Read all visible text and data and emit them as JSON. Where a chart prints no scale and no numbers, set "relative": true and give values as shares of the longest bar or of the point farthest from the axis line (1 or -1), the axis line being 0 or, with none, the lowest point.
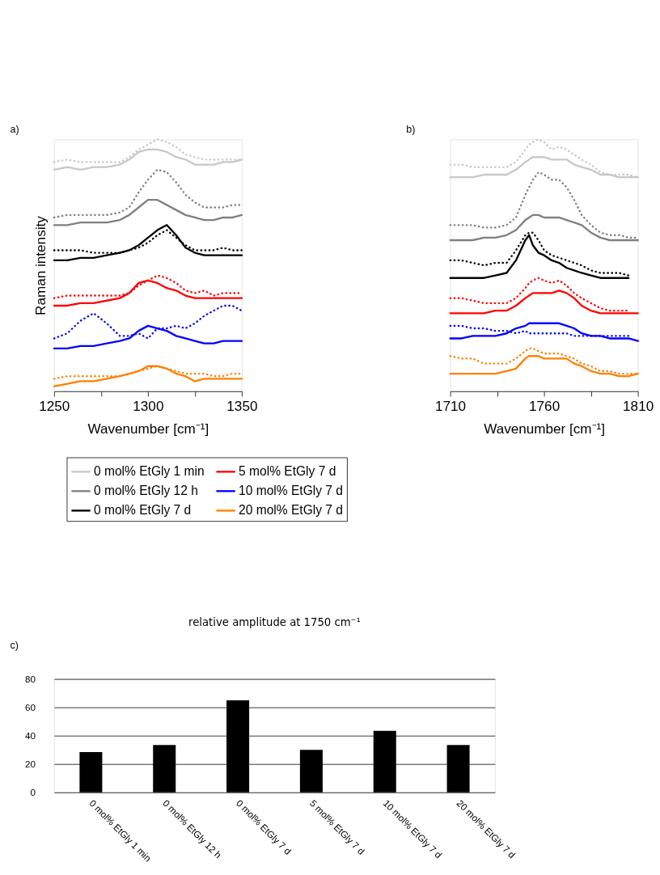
{
  "chart_data": [
    {
      "type": "line",
      "relative": true,
      "annotations": [
        "a)"
      ],
      "xlabel": "Wavenumber [cm⁻¹]",
      "ylabel": "Raman intensity",
      "legend": "bottom",
      "grid": false,
      "xlim": [
        1250,
        1350
      ],
      "xticks": [
        1250,
        {
          "value": 1275,
          "label": null
        },
        1300,
        {
          "value": 1325,
          "label": null
        },
        1350
      ],
      "x": [
        1250,
        1257,
        1264,
        1271,
        1278,
        1285,
        1290,
        1295,
        1300,
        1305,
        1310,
        1315,
        1320,
        1325,
        1330,
        1335,
        1340,
        1345,
        1350
      ],
      "series": [
        {
          "name": "0 mol% EtGly 1 min",
          "color": "#c8c8c8",
          "line_style": "solid",
          "values": [
            0.88,
            0.89,
            0.88,
            0.89,
            0.89,
            0.9,
            0.92,
            0.95,
            0.96,
            0.96,
            0.95,
            0.93,
            0.92,
            0.9,
            0.9,
            0.9,
            0.91,
            0.91,
            0.92
          ]
        },
        {
          "color": "#c8c8c8",
          "line_style": "dotted",
          "values": [
            0.91,
            0.92,
            0.91,
            0.91,
            0.91,
            0.91,
            0.93,
            0.96,
            0.98,
            1.0,
            0.99,
            0.97,
            0.94,
            0.93,
            0.92,
            0.92,
            0.92,
            0.92,
            0.92
          ]
        },
        {
          "name": "0 mol% EtGly 12 h",
          "color": "#808080",
          "line_style": "solid",
          "values": [
            0.66,
            0.66,
            0.67,
            0.67,
            0.67,
            0.68,
            0.7,
            0.73,
            0.76,
            0.76,
            0.74,
            0.72,
            0.7,
            0.69,
            0.68,
            0.68,
            0.69,
            0.69,
            0.7
          ]
        },
        {
          "color": "#808080",
          "line_style": "dotted",
          "values": [
            0.69,
            0.7,
            0.7,
            0.7,
            0.7,
            0.71,
            0.73,
            0.79,
            0.84,
            0.88,
            0.87,
            0.83,
            0.78,
            0.75,
            0.73,
            0.73,
            0.73,
            0.74,
            0.74
          ]
        },
        {
          "name": "0 mol% EtGly 7 d",
          "color": "#000000",
          "line_style": "solid",
          "values": [
            0.52,
            0.52,
            0.53,
            0.53,
            0.54,
            0.55,
            0.56,
            0.58,
            0.61,
            0.64,
            0.66,
            0.62,
            0.57,
            0.55,
            0.54,
            0.54,
            0.54,
            0.54,
            0.54
          ]
        },
        {
          "color": "#000000",
          "line_style": "dotted",
          "values": [
            0.56,
            0.56,
            0.56,
            0.55,
            0.55,
            0.55,
            0.56,
            0.57,
            0.59,
            0.62,
            0.64,
            0.61,
            0.58,
            0.56,
            0.56,
            0.56,
            0.57,
            0.56,
            0.56
          ]
        },
        {
          "name": "5 mol% EtGly 7 d",
          "color": "#ff0000",
          "line_style": "solid",
          "values": [
            0.34,
            0.34,
            0.35,
            0.35,
            0.36,
            0.37,
            0.39,
            0.43,
            0.44,
            0.43,
            0.41,
            0.4,
            0.38,
            0.37,
            0.37,
            0.37,
            0.37,
            0.37,
            0.37
          ]
        },
        {
          "color": "#ff0000",
          "line_style": "dotted",
          "values": [
            0.37,
            0.38,
            0.38,
            0.38,
            0.38,
            0.38,
            0.39,
            0.42,
            0.44,
            0.46,
            0.45,
            0.43,
            0.4,
            0.39,
            0.4,
            0.38,
            0.39,
            0.39,
            0.39
          ]
        },
        {
          "name": "10 mol% EtGly 7 d",
          "color": "#0000ff",
          "line_style": "solid",
          "values": [
            0.17,
            0.17,
            0.18,
            0.18,
            0.19,
            0.2,
            0.21,
            0.24,
            0.26,
            0.25,
            0.24,
            0.22,
            0.21,
            0.2,
            0.19,
            0.19,
            0.2,
            0.2,
            0.2
          ]
        },
        {
          "color": "#0000ff",
          "line_style": "dotted",
          "values": [
            0.21,
            0.23,
            0.28,
            0.31,
            0.27,
            0.22,
            0.22,
            0.23,
            0.21,
            0.25,
            0.25,
            0.26,
            0.25,
            0.27,
            0.3,
            0.32,
            0.34,
            0.34,
            0.32
          ]
        },
        {
          "name": "20 mol% EtGly 7 d",
          "color": "#ff8000",
          "line_style": "solid",
          "values": [
            0.02,
            0.03,
            0.04,
            0.04,
            0.05,
            0.06,
            0.07,
            0.08,
            0.1,
            0.1,
            0.09,
            0.07,
            0.06,
            0.04,
            0.05,
            0.05,
            0.05,
            0.05,
            0.05
          ]
        },
        {
          "color": "#ff8000",
          "line_style": "dotted",
          "values": [
            0.05,
            0.06,
            0.06,
            0.06,
            0.06,
            0.06,
            0.07,
            0.08,
            0.09,
            0.1,
            0.09,
            0.08,
            0.07,
            0.07,
            0.07,
            0.06,
            0.06,
            0.07,
            0.07
          ]
        }
      ]
    },
    {
      "type": "line",
      "relative": true,
      "annotations": [
        "b)"
      ],
      "xlabel": "Wavenumber [cm⁻¹]",
      "grid": false,
      "xlim": [
        1710,
        1810
      ],
      "xticks": [
        1710,
        {
          "value": 1735,
          "label": null
        },
        1760,
        {
          "value": 1785,
          "label": null
        },
        1810
      ],
      "x": [
        1710,
        1716,
        1722,
        1728,
        1734,
        1740,
        1745,
        1750,
        1752,
        1754,
        1757,
        1760,
        1764,
        1768,
        1772,
        1776,
        1780,
        1785,
        1790,
        1795,
        1800,
        1805,
        1810
      ],
      "series": [
        {
          "color": "#c8c8c8",
          "line_style": "solid",
          "values": [
            0.85,
            0.85,
            0.85,
            0.86,
            0.86,
            0.86,
            0.88,
            0.91,
            0.92,
            0.93,
            0.93,
            0.93,
            0.92,
            0.92,
            0.92,
            0.9,
            0.89,
            0.88,
            0.86,
            0.86,
            0.85,
            0.85,
            0.85
          ]
        },
        {
          "color": "#c8c8c8",
          "line_style": "dotted",
          "values": [
            0.9,
            0.9,
            0.89,
            0.89,
            0.89,
            0.89,
            0.91,
            0.96,
            0.98,
            0.99,
            1.0,
            0.99,
            0.96,
            0.97,
            0.96,
            0.94,
            0.92,
            0.9,
            0.87,
            0.86,
            0.86,
            0.86,
            0.85
          ]
        },
        {
          "color": "#808080",
          "line_style": "solid",
          "values": [
            0.6,
            0.6,
            0.6,
            0.61,
            0.61,
            0.62,
            0.64,
            0.68,
            0.69,
            0.7,
            0.7,
            0.69,
            0.69,
            0.69,
            0.68,
            0.67,
            0.66,
            0.63,
            0.61,
            0.6,
            0.6,
            0.6,
            0.6
          ]
        },
        {
          "color": "#808080",
          "line_style": "dotted",
          "values": [
            0.66,
            0.66,
            0.66,
            0.65,
            0.65,
            0.66,
            0.69,
            0.78,
            0.81,
            0.84,
            0.87,
            0.86,
            0.84,
            0.84,
            0.81,
            0.76,
            0.7,
            0.66,
            0.63,
            0.62,
            0.62,
            0.61,
            0.61
          ]
        },
        {
          "color": "#000000",
          "line_style": "solid",
          "values": [
            0.45,
            0.45,
            0.45,
            0.45,
            0.46,
            0.47,
            0.52,
            0.6,
            0.62,
            0.58,
            0.55,
            0.54,
            0.52,
            0.51,
            0.49,
            0.48,
            0.47,
            0.46,
            0.45,
            0.45,
            0.45,
            0.45,
            null
          ]
        },
        {
          "color": "#000000",
          "line_style": "dotted",
          "values": [
            0.52,
            0.52,
            0.51,
            0.5,
            0.51,
            0.51,
            0.56,
            0.62,
            0.63,
            0.63,
            0.6,
            0.56,
            0.54,
            0.53,
            0.52,
            0.51,
            0.5,
            0.48,
            0.47,
            0.47,
            0.47,
            0.46,
            null
          ]
        },
        {
          "color": "#ff0000",
          "line_style": "solid",
          "values": [
            0.31,
            0.31,
            0.31,
            0.31,
            0.32,
            0.32,
            0.34,
            0.37,
            0.38,
            0.39,
            0.39,
            0.39,
            0.39,
            0.4,
            0.39,
            0.37,
            0.34,
            0.32,
            0.31,
            0.31,
            0.31,
            0.31,
            0.31
          ]
        },
        {
          "color": "#ff0000",
          "line_style": "dotted",
          "values": [
            0.37,
            0.37,
            0.36,
            0.35,
            0.35,
            0.35,
            0.37,
            0.41,
            0.43,
            0.44,
            0.45,
            0.44,
            0.43,
            0.44,
            0.42,
            0.39,
            0.37,
            0.35,
            0.33,
            0.32,
            0.32,
            0.32,
            null
          ]
        },
        {
          "color": "#0000ff",
          "line_style": "solid",
          "values": [
            0.21,
            0.21,
            0.22,
            0.22,
            0.22,
            0.23,
            0.25,
            0.26,
            0.27,
            0.27,
            0.27,
            0.27,
            0.27,
            0.27,
            0.26,
            0.25,
            0.23,
            0.22,
            0.22,
            0.21,
            0.21,
            0.21,
            0.2
          ]
        },
        {
          "color": "#0000ff",
          "line_style": "dotted",
          "values": [
            0.26,
            0.26,
            0.25,
            0.25,
            0.24,
            0.24,
            0.23,
            0.24,
            0.23,
            0.23,
            0.23,
            0.23,
            0.23,
            0.23,
            0.23,
            0.22,
            0.22,
            0.22,
            0.22,
            0.22,
            0.22,
            0.22,
            null
          ]
        },
        {
          "color": "#ff8000",
          "line_style": "solid",
          "values": [
            0.07,
            0.07,
            0.07,
            0.07,
            0.07,
            0.08,
            0.09,
            0.13,
            0.14,
            0.14,
            0.14,
            0.13,
            0.13,
            0.13,
            0.13,
            0.11,
            0.1,
            0.08,
            0.07,
            0.07,
            0.06,
            0.06,
            0.07
          ]
        },
        {
          "color": "#ff8000",
          "line_style": "dotted",
          "values": [
            0.14,
            0.13,
            0.13,
            0.11,
            0.11,
            0.11,
            0.13,
            0.16,
            0.17,
            0.17,
            0.16,
            0.15,
            0.15,
            0.15,
            0.14,
            0.13,
            0.11,
            0.1,
            0.08,
            0.08,
            0.07,
            0.07,
            0.07
          ]
        }
      ]
    },
    {
      "type": "bar",
      "title": "relative amplitude at 1750 cm⁻¹",
      "annotations": [
        "c)"
      ],
      "grid": "y",
      "categories": [
        "0 mol% EtGly 1 min",
        "0 mol% EtGly 12 h",
        "0 mol% EtGly 7 d",
        "5 mol% EtGly 7 d",
        "10 mol% EtGly 7 d",
        "20 mol% EtGly 7 d"
      ],
      "values": [
        28.5,
        33.5,
        65,
        30,
        43.5,
        33.5
      ],
      "color": "#000000",
      "ylim": [
        0,
        80
      ],
      "yticks": [
        0,
        20,
        40,
        60,
        80
      ]
    }
  ]
}
